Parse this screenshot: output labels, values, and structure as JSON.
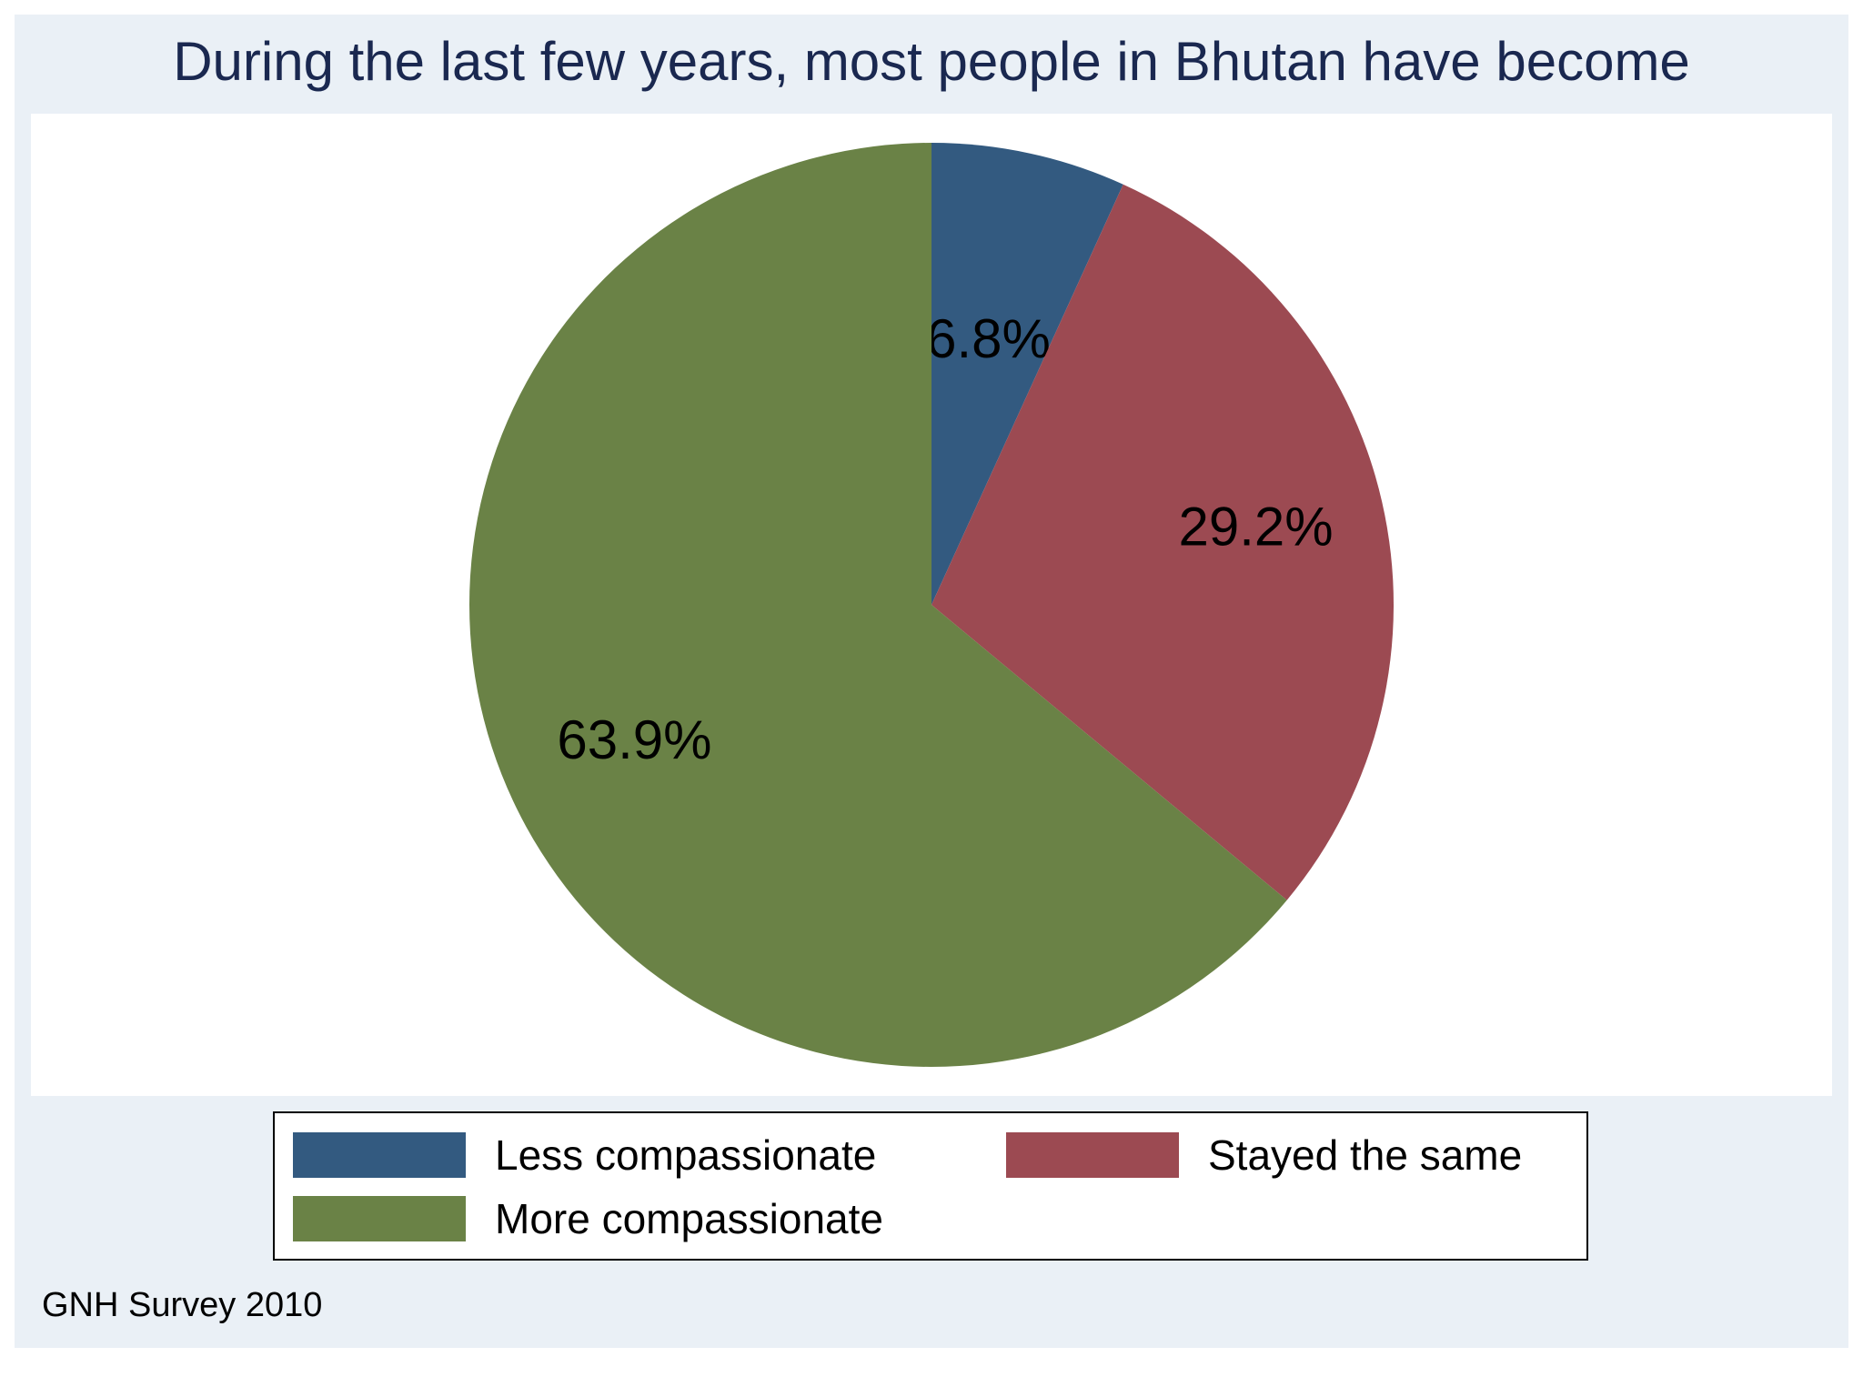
{
  "chart_data": {
    "type": "pie",
    "title": "During the last few years, most people in Bhutan have become",
    "categories": [
      "Less compassionate",
      "Stayed the same",
      "More compassionate"
    ],
    "values": [
      6.8,
      29.2,
      63.9
    ],
    "labels": [
      "6.8%",
      "29.2%",
      "63.9%"
    ],
    "colors": [
      "#335a80",
      "#9c4a52",
      "#6a8246"
    ],
    "legend_placement": "bottom",
    "note": "GNH Survey 2010"
  }
}
